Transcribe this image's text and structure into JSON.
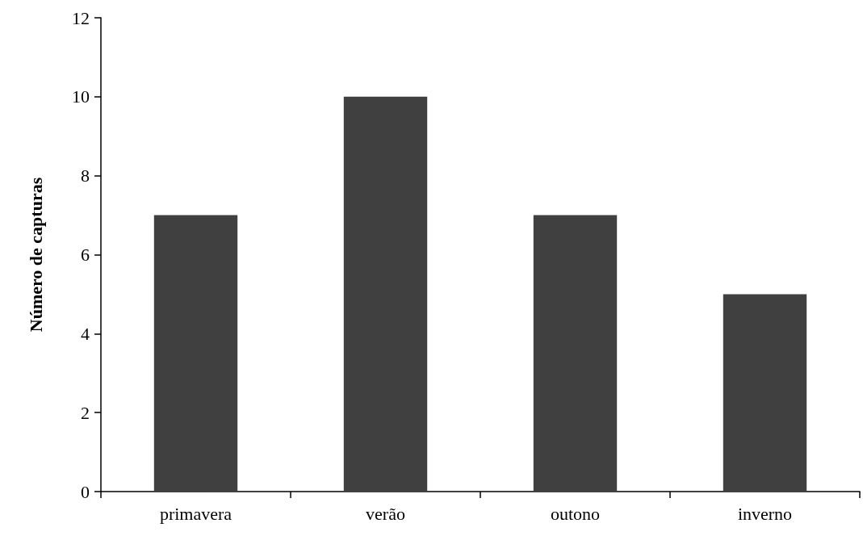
{
  "chart_data": {
    "type": "bar",
    "ylabel": "Número de capturas",
    "categories": [
      "primavera",
      "verão",
      "outono",
      "inverno"
    ],
    "values": [
      7,
      10,
      7,
      5
    ],
    "color": "#404040",
    "ylim": [
      0,
      12
    ],
    "yticks": [
      0,
      2,
      4,
      6,
      8,
      10,
      12
    ],
    "grid": false
  }
}
